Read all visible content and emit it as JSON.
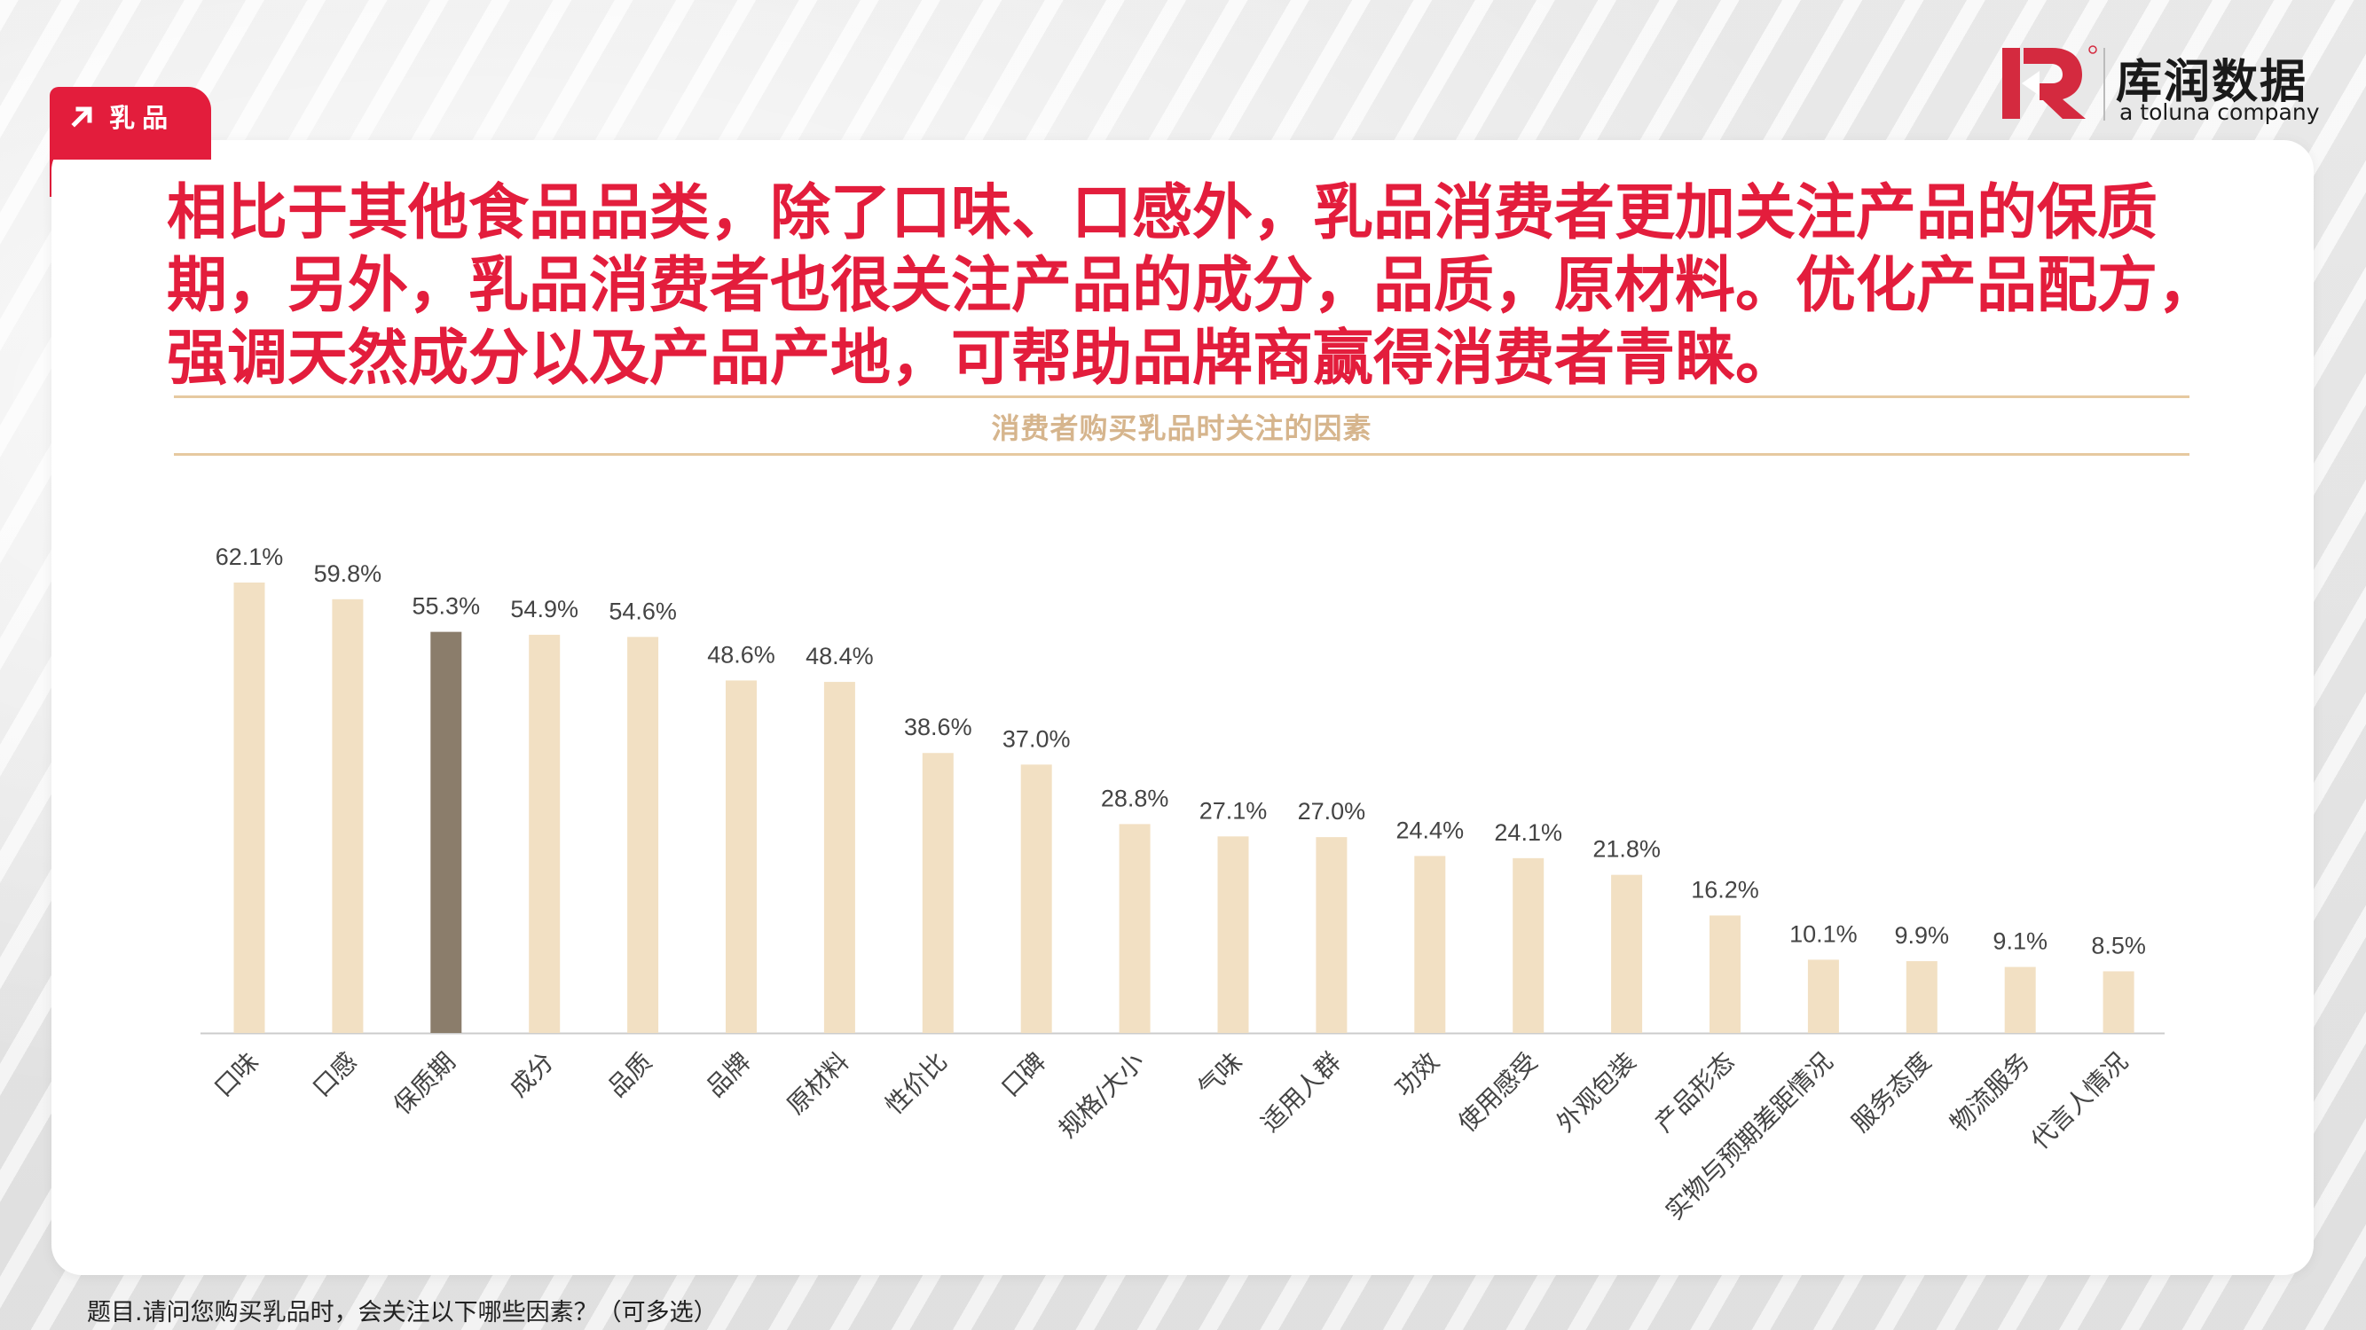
{
  "tag": {
    "label": "乳品"
  },
  "logo": {
    "name_cn": "库润数据",
    "tagline": "a toluna company"
  },
  "headline": "相比于其他食品品类，除了口味、口感外，乳品消费者更加关注产品的保质期，另外，乳品消费者也很关注产品的成分，品质，原材料。优化产品配方，强调天然成分以及产品产地，可帮助品牌商赢得消费者青睐。",
  "footnote": "题目.请问您购买乳品时，会关注以下哪些因素？（可多选）",
  "colors": {
    "accent": "#e31d3c",
    "bar": "#f2e0c3",
    "highlight_bar": "#8b7d6b",
    "title": "#d6b58d"
  },
  "chart_data": {
    "type": "bar",
    "title": "消费者购买乳品时关注的因素",
    "categories": [
      "口味",
      "口感",
      "保质期",
      "成分",
      "品质",
      "品牌",
      "原材料",
      "性价比",
      "口碑",
      "规格/大小",
      "气味",
      "适用人群",
      "功效",
      "使用感受",
      "外观包装",
      "产品形态",
      "实物与预期差距情况",
      "服务态度",
      "物流服务",
      "代言人情况"
    ],
    "values": [
      62.1,
      59.8,
      55.3,
      54.9,
      54.6,
      48.6,
      48.4,
      38.6,
      37.0,
      28.8,
      27.1,
      27.0,
      24.4,
      24.1,
      21.8,
      16.2,
      10.1,
      9.9,
      9.1,
      8.5
    ],
    "value_labels": [
      "62.1%",
      "59.8%",
      "55.3%",
      "54.9%",
      "54.6%",
      "48.6%",
      "48.4%",
      "38.6%",
      "37.0%",
      "28.8%",
      "27.1%",
      "27.0%",
      "24.4%",
      "24.1%",
      "21.8%",
      "16.2%",
      "10.1%",
      "9.9%",
      "9.1%",
      "8.5%"
    ],
    "highlight": "保质期",
    "grid": false,
    "legend": "none"
  }
}
